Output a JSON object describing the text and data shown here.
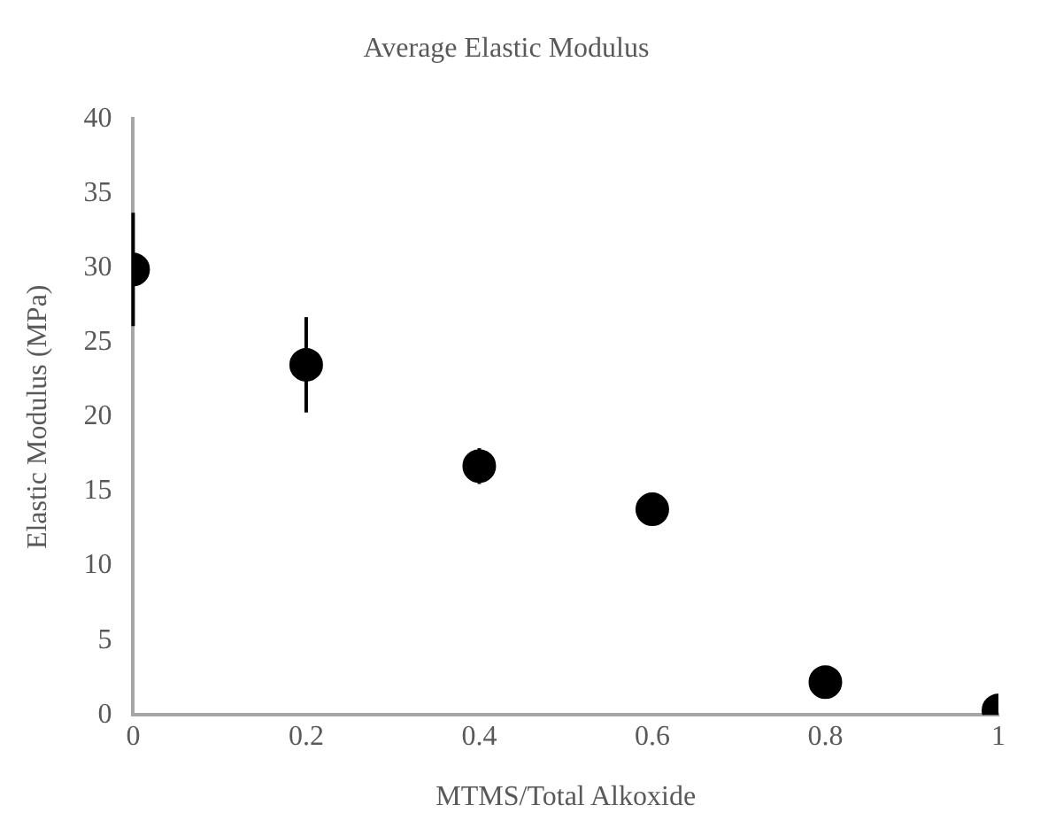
{
  "chart_data": {
    "type": "scatter",
    "title": "Average Elastic Modulus",
    "xlabel": "MTMS/Total Alkoxide",
    "ylabel": "Elastic Modulus (MPa)",
    "x": [
      0,
      0.2,
      0.4,
      0.6,
      0.8,
      1
    ],
    "series": [
      {
        "color": "#000000",
        "values": [
          29.9,
          23.5,
          16.7,
          13.8,
          2.2,
          0.3
        ],
        "errors": [
          3.8,
          3.2,
          1.2,
          null,
          null,
          null
        ]
      }
    ],
    "xlim": [
      0,
      1
    ],
    "xticks": [
      0,
      0.2,
      0.4,
      0.6,
      0.8,
      1
    ],
    "ylim": [
      0,
      40
    ],
    "yticks": [
      0,
      5,
      10,
      15,
      20,
      25,
      30,
      35,
      40
    ],
    "grid": false,
    "legend": false,
    "marker": "circle"
  }
}
